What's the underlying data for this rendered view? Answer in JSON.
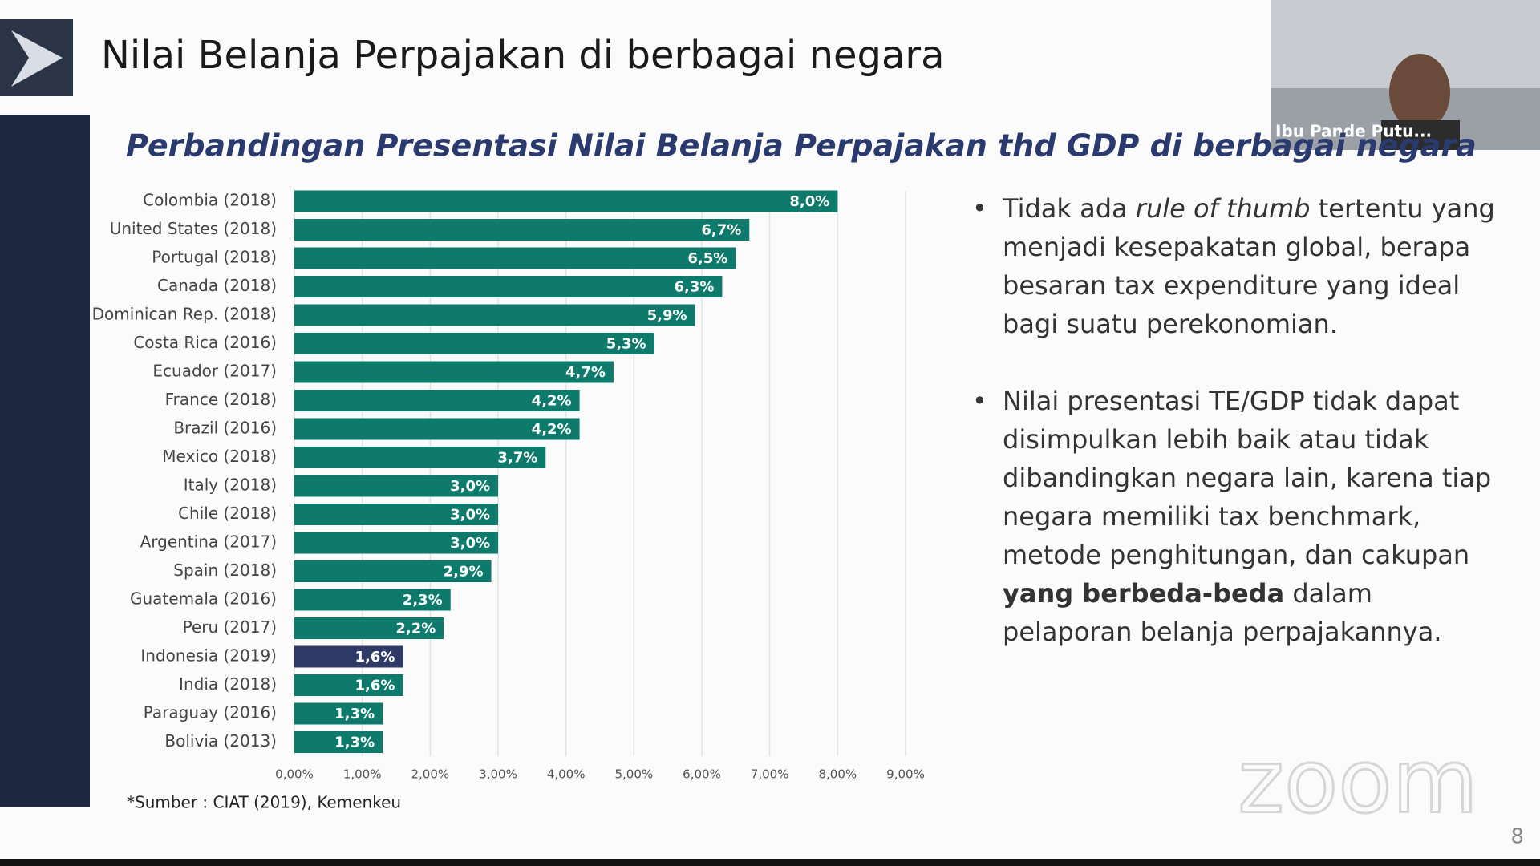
{
  "slide": {
    "title": "Nilai Belanja Perpajakan di berbagai negara",
    "participant": "Ibu Pande Putu...",
    "watermark": "zoom",
    "page_number": "8",
    "bullets": [
      [
        {
          "text": "Tidak ada "
        },
        {
          "text": "rule of thumb",
          "style": "italic"
        },
        {
          "text": " tertentu yang menjadi kesepakatan global, berapa besaran tax expenditure yang ideal bagi suatu perekonomian."
        }
      ],
      [
        {
          "text": "Nilai presentasi TE/GDP tidak dapat disimpulkan lebih baik atau tidak dibandingkan negara lain, karena tiap negara memiliki tax benchmark, metode penghitungan, dan cakupan "
        },
        {
          "text": "yang berbeda-beda",
          "style": "bold"
        },
        {
          "text": " dalam pelaporan belanja perpajakannya."
        }
      ]
    ]
  },
  "chart_data": {
    "type": "bar",
    "orientation": "horizontal",
    "title": "Perbandingan Presentasi Nilai Belanja Perpajakan thd GDP di berbagai negara",
    "source": "*Sumber : CIAT (2019), Kemenkeu",
    "categories": [
      "Colombia (2018)",
      "United States (2018)",
      "Portugal (2018)",
      "Canada (2018)",
      "Dominican Rep. (2018)",
      "Costa Rica (2016)",
      "Ecuador (2017)",
      "France (2018)",
      "Brazil (2016)",
      "Mexico (2018)",
      "Italy (2018)",
      "Chile (2018)",
      "Argentina (2017)",
      "Spain (2018)",
      "Guatemala (2016)",
      "Peru (2017)",
      "Indonesia (2019)",
      "India (2018)",
      "Paraguay (2016)",
      "Bolivia (2013)"
    ],
    "values": [
      8.0,
      6.7,
      6.5,
      6.3,
      5.9,
      5.3,
      4.7,
      4.2,
      4.2,
      3.7,
      3.0,
      3.0,
      3.0,
      2.9,
      2.3,
      2.2,
      1.6,
      1.6,
      1.3,
      1.3
    ],
    "value_labels": [
      "8,0%",
      "6,7%",
      "6,5%",
      "6,3%",
      "5,9%",
      "5,3%",
      "4,7%",
      "4,2%",
      "4,2%",
      "3,7%",
      "3,0%",
      "3,0%",
      "3,0%",
      "2,9%",
      "2,3%",
      "2,2%",
      "1,6%",
      "1,6%",
      "1,3%",
      "1,3%"
    ],
    "colors": [
      "#0e7a6b",
      "#0e7a6b",
      "#0e7a6b",
      "#0e7a6b",
      "#0e7a6b",
      "#0e7a6b",
      "#0e7a6b",
      "#0e7a6b",
      "#0e7a6b",
      "#0e7a6b",
      "#0e7a6b",
      "#0e7a6b",
      "#0e7a6b",
      "#0e7a6b",
      "#0e7a6b",
      "#0e7a6b",
      "#2f3a66",
      "#0e7a6b",
      "#0e7a6b",
      "#0e7a6b"
    ],
    "xlim": [
      0,
      9
    ],
    "xticks": [
      {
        "value": 0,
        "label": "0,00%"
      },
      {
        "value": 1,
        "label": "1,00%"
      },
      {
        "value": 2,
        "label": "2,00%"
      },
      {
        "value": 3,
        "label": "3,00%"
      },
      {
        "value": 4,
        "label": "4,00%"
      },
      {
        "value": 5,
        "label": "5,00%"
      },
      {
        "value": 6,
        "label": "6,00%"
      },
      {
        "value": 7,
        "label": "7,00%"
      },
      {
        "value": 8,
        "label": "8,00%"
      },
      {
        "value": 9,
        "label": "9,00%"
      }
    ],
    "grid": true
  }
}
